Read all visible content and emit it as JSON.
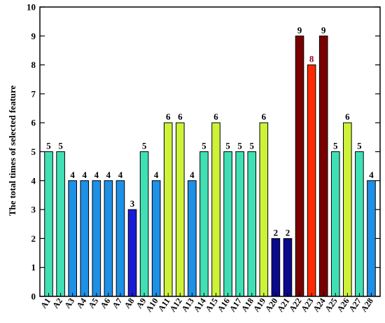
{
  "chart_data": {
    "type": "bar",
    "title": "",
    "xlabel": "",
    "ylabel": "The total times of selected feature",
    "ylim": [
      0,
      10
    ],
    "yticks": [
      0,
      1,
      2,
      3,
      4,
      5,
      6,
      7,
      8,
      9,
      10
    ],
    "grid": false,
    "categories": [
      "A1",
      "A2",
      "A3",
      "A4",
      "A5",
      "A6",
      "A7",
      "A8",
      "A9",
      "A10",
      "A11",
      "A12",
      "A13",
      "A14",
      "A15",
      "A16",
      "A17",
      "A18",
      "A19",
      "A20",
      "A21",
      "A22",
      "A23",
      "A24",
      "A25",
      "A26",
      "A27",
      "A28"
    ],
    "values": [
      5,
      5,
      4,
      4,
      4,
      4,
      4,
      3,
      5,
      4,
      6,
      6,
      4,
      5,
      6,
      5,
      5,
      5,
      6,
      2,
      2,
      9,
      8,
      9,
      5,
      6,
      5,
      4
    ],
    "data_labels": [
      "5",
      "5",
      "4",
      "4",
      "4",
      "4",
      "4",
      "3",
      "5",
      "4",
      "6",
      "6",
      "4",
      "5",
      "6",
      "5",
      "5",
      "5",
      "6",
      "2",
      "2",
      "9",
      "8",
      "9",
      "5",
      "6",
      "5",
      "4"
    ],
    "bar_colors": {
      "2": "#0a0a8c",
      "3": "#1a1ad6",
      "4": "#1e90e6",
      "5": "#40e0b4",
      "6": "#ccf23a",
      "8": "#ff2a00",
      "9": "#7a0000"
    },
    "data_label_colors": {
      "default": "#000000",
      "8": "#8b0a2a"
    }
  }
}
